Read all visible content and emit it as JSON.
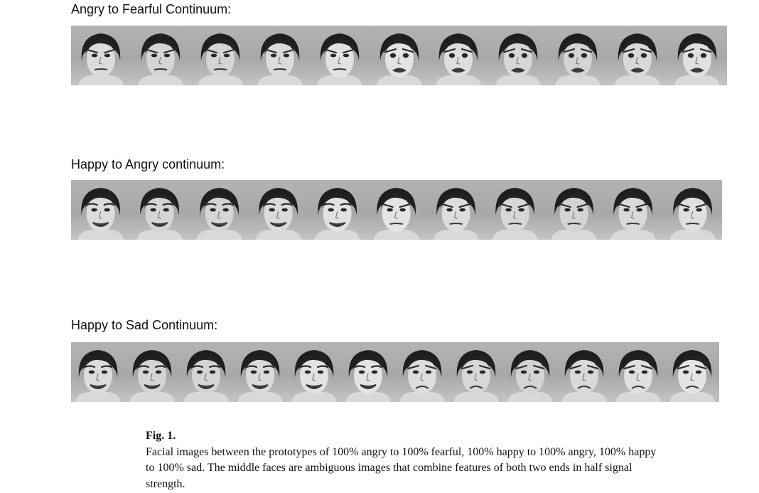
{
  "figure": {
    "rows": [
      {
        "title": "Angry to Fearful Continuum:",
        "frames": 11,
        "from": "angry",
        "to": "fearful"
      },
      {
        "title": "Happy to Angry continuum:",
        "frames": 11,
        "from": "happy",
        "to": "angry"
      },
      {
        "title": "Happy to Sad Continuum:",
        "frames": 12,
        "from": "happy",
        "to": "sad"
      }
    ],
    "caption": {
      "label": "Fig. 1.",
      "text": "Facial images between the prototypes of 100% angry to 100% fearful, 100% happy to 100% angry, 100% happy to 100% sad. The middle faces are ambiguous images that combine features of both two ends in half signal strength."
    }
  }
}
